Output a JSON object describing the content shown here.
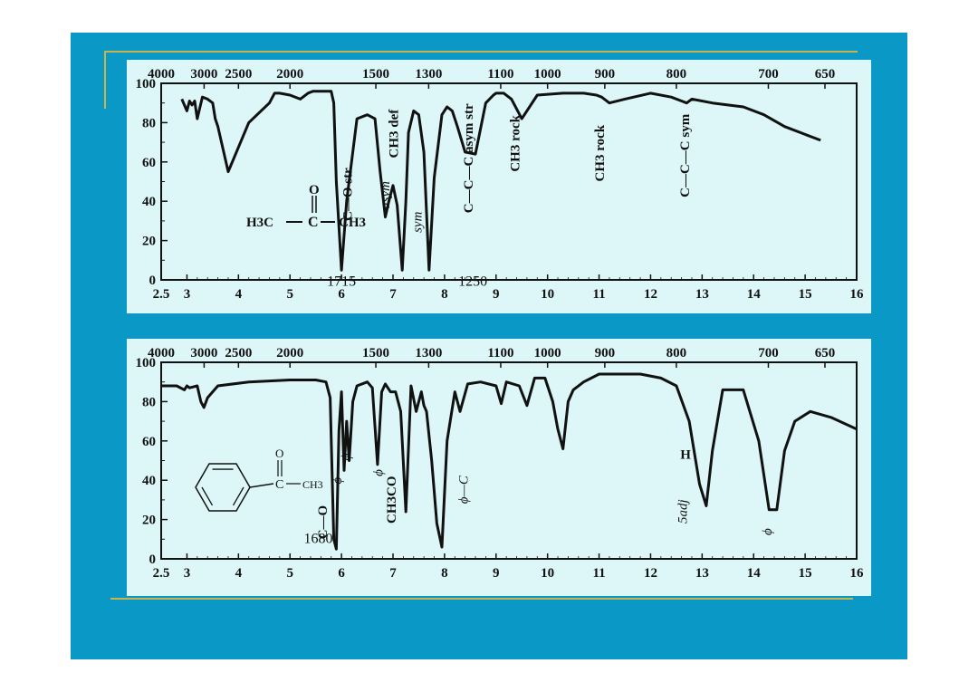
{
  "colors": {
    "slide_bg": "#0a98c6",
    "panel_bg": "#ddf7f8",
    "ink": "#111111",
    "accent_line": "#c9b34a"
  },
  "chart_data": [
    {
      "type": "line",
      "id": "acetone",
      "top_axis_ticks": [
        "4000",
        "3000",
        "2500",
        "2000",
        "1500",
        "1300",
        "1100",
        "1000",
        "900",
        "800",
        "700",
        "650"
      ],
      "bottom_axis_ticks": [
        "2.5",
        "3",
        "4",
        "5",
        "6",
        "7",
        "8",
        "9",
        "10",
        "11",
        "12",
        "13",
        "14",
        "15",
        "16"
      ],
      "y_ticks": [
        "0",
        "20",
        "40",
        "60",
        "80",
        "100"
      ],
      "xlim": [
        2.5,
        16
      ],
      "ylim": [
        0,
        100
      ],
      "x": [
        2.9,
        3.0,
        3.05,
        3.1,
        3.15,
        3.2,
        3.3,
        3.4,
        3.5,
        3.55,
        3.6,
        3.8,
        4.2,
        4.6,
        4.7,
        4.8,
        5.0,
        5.2,
        5.35,
        5.45,
        5.55,
        5.62,
        5.7,
        5.75,
        5.8,
        5.85,
        5.9,
        6.0,
        6.1,
        6.3,
        6.5,
        6.65,
        6.75,
        6.85,
        6.92,
        7.0,
        7.08,
        7.18,
        7.25,
        7.3,
        7.4,
        7.5,
        7.6,
        7.7,
        7.8,
        7.95,
        8.05,
        8.15,
        8.25,
        8.4,
        8.6,
        8.8,
        8.95,
        9.0,
        9.08,
        9.15,
        9.3,
        9.5,
        9.8,
        10.3,
        10.7,
        10.95,
        11.05,
        11.2,
        11.5,
        12.0,
        12.4,
        12.6,
        12.7,
        12.8,
        13.2,
        13.8,
        14.2,
        14.6,
        15.0,
        15.3
      ],
      "y": [
        92,
        86,
        91,
        89,
        91,
        82,
        93,
        92,
        90,
        82,
        78,
        55,
        80,
        90,
        95,
        95,
        94,
        92,
        95,
        96,
        96,
        96,
        96,
        96,
        96,
        90,
        50,
        5,
        40,
        82,
        84,
        82,
        55,
        32,
        40,
        48,
        38,
        5,
        40,
        75,
        86,
        84,
        65,
        5,
        52,
        84,
        88,
        86,
        78,
        65,
        64,
        90,
        94,
        95,
        95,
        95,
        92,
        82,
        94,
        95,
        95,
        94,
        93,
        90,
        92,
        95,
        93,
        91,
        90,
        92,
        90,
        88,
        84,
        78,
        74,
        71
      ],
      "formula": {
        "left": "H3C",
        "center": "C",
        "right": "CH3",
        "oxygen": "O"
      },
      "annotations": [
        {
          "text": "1715",
          "at": 6.0,
          "level": -3
        },
        {
          "text": "C—O str",
          "at": 6.2,
          "level": 30,
          "rot": true,
          "bold": true
        },
        {
          "text": "asym",
          "at": 6.93,
          "level": 36,
          "rot": true,
          "italic": true
        },
        {
          "text": "CH3 def",
          "at": 7.1,
          "level": 62,
          "rot": true,
          "bold": true
        },
        {
          "text": "sym",
          "at": 7.55,
          "level": 24,
          "rot": true,
          "italic": true
        },
        {
          "text": "C—C—C asym str",
          "at": 8.55,
          "level": 34,
          "rot": true,
          "bold": true
        },
        {
          "text": "1250",
          "at": 8.55,
          "level": -3
        },
        {
          "text": "CH3 rock",
          "at": 9.45,
          "level": 55,
          "rot": true,
          "bold": true
        },
        {
          "text": "CH3 rock",
          "at": 11.1,
          "level": 50,
          "rot": true,
          "bold": true
        },
        {
          "text": "C—C—C sym",
          "at": 12.75,
          "level": 42,
          "rot": true,
          "bold": true
        }
      ]
    },
    {
      "type": "line",
      "id": "acetophenone",
      "top_axis_ticks": [
        "4000",
        "3000",
        "2500",
        "2000",
        "1500",
        "1300",
        "1100",
        "1000",
        "900",
        "800",
        "700",
        "650"
      ],
      "bottom_axis_ticks": [
        "2.5",
        "3",
        "4",
        "5",
        "6",
        "7",
        "8",
        "9",
        "10",
        "11",
        "12",
        "13",
        "14",
        "15",
        "16"
      ],
      "y_ticks": [
        "0",
        "20",
        "40",
        "60",
        "80",
        "100"
      ],
      "xlim": [
        2.5,
        16
      ],
      "ylim": [
        0,
        100
      ],
      "x": [
        2.5,
        2.8,
        2.95,
        3.0,
        3.05,
        3.2,
        3.27,
        3.33,
        3.4,
        3.6,
        4.2,
        5.0,
        5.5,
        5.7,
        5.78,
        5.85,
        5.9,
        5.95,
        6.0,
        6.05,
        6.1,
        6.15,
        6.22,
        6.3,
        6.5,
        6.6,
        6.7,
        6.78,
        6.85,
        6.95,
        7.05,
        7.15,
        7.25,
        7.35,
        7.45,
        7.55,
        7.6,
        7.65,
        7.75,
        7.85,
        7.95,
        8.05,
        8.2,
        8.3,
        8.45,
        8.7,
        9.0,
        9.1,
        9.2,
        9.45,
        9.6,
        9.75,
        9.95,
        10.1,
        10.2,
        10.3,
        10.4,
        10.5,
        10.7,
        11.0,
        11.8,
        12.2,
        12.5,
        12.75,
        12.95,
        13.08,
        13.2,
        13.4,
        13.8,
        14.1,
        14.3,
        14.45,
        14.6,
        14.8,
        15.1,
        15.5,
        16.0
      ],
      "y": [
        88,
        88,
        86,
        88,
        87,
        88,
        80,
        77,
        82,
        88,
        90,
        91,
        91,
        90,
        82,
        10,
        5,
        65,
        85,
        45,
        70,
        50,
        80,
        88,
        90,
        87,
        48,
        85,
        89,
        85,
        85,
        75,
        24,
        88,
        75,
        85,
        78,
        75,
        50,
        18,
        6,
        60,
        85,
        75,
        89,
        90,
        88,
        79,
        90,
        88,
        78,
        92,
        92,
        80,
        66,
        56,
        80,
        86,
        90,
        94,
        94,
        92,
        88,
        70,
        38,
        27,
        55,
        86,
        86,
        60,
        25,
        25,
        55,
        70,
        75,
        72,
        66
      ],
      "formula": {
        "left": "C6H5",
        "center": "C",
        "right": "CH3",
        "oxygen": "O"
      },
      "annotations": [
        {
          "text": "1680",
          "at": 5.55,
          "level": 8
        },
        {
          "text": "C—O",
          "at": 5.72,
          "level": 10,
          "rot": true,
          "bold": true
        },
        {
          "text": "ϕ",
          "at": 6.17,
          "level": 50,
          "rot": true,
          "italic": true
        },
        {
          "text": "ϕ",
          "at": 6.0,
          "level": 38,
          "rot": true,
          "italic": true
        },
        {
          "text": "ϕ",
          "at": 6.8,
          "level": 42,
          "rot": true,
          "italic": true
        },
        {
          "text": "CH3CO",
          "at": 7.05,
          "level": 18,
          "rot": true,
          "bold": true
        },
        {
          "text": "ϕ—C",
          "at": 8.45,
          "level": 28,
          "rot": true,
          "italic": true
        },
        {
          "text": "H",
          "at": 12.68,
          "level": 51,
          "bold": true
        },
        {
          "text": "5adj",
          "at": 12.7,
          "level": 18,
          "rot": true,
          "italic": true
        },
        {
          "text": "ϕ",
          "at": 14.35,
          "level": 12,
          "rot": true,
          "italic": true
        }
      ]
    }
  ]
}
